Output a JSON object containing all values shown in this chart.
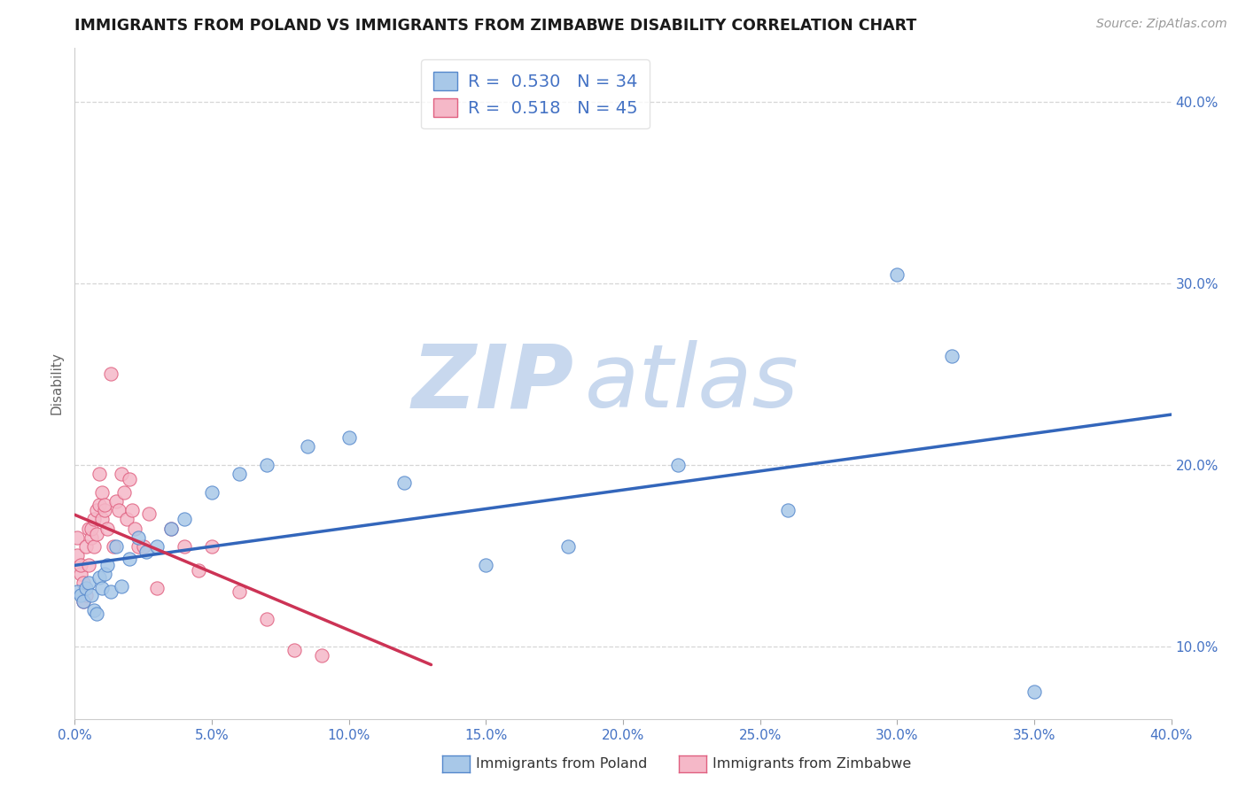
{
  "title": "IMMIGRANTS FROM POLAND VS IMMIGRANTS FROM ZIMBABWE DISABILITY CORRELATION CHART",
  "source": "Source: ZipAtlas.com",
  "ylabel": "Disability",
  "poland_fill_color": "#a8c8e8",
  "zimbabwe_fill_color": "#f5b8c8",
  "poland_edge_color": "#5588cc",
  "zimbabwe_edge_color": "#e06080",
  "poland_line_color": "#3366bb",
  "zimbabwe_line_color": "#cc3355",
  "poland_R": 0.53,
  "poland_N": 34,
  "zimbabwe_R": 0.518,
  "zimbabwe_N": 45,
  "xlim": [
    0.0,
    0.4
  ],
  "ylim": [
    0.06,
    0.43
  ],
  "xtick_vals": [
    0.0,
    0.05,
    0.1,
    0.15,
    0.2,
    0.25,
    0.3,
    0.35,
    0.4
  ],
  "ytick_vals": [
    0.1,
    0.2,
    0.3,
    0.4
  ],
  "poland_x": [
    0.001,
    0.002,
    0.003,
    0.004,
    0.005,
    0.006,
    0.007,
    0.008,
    0.009,
    0.01,
    0.011,
    0.012,
    0.013,
    0.015,
    0.017,
    0.02,
    0.023,
    0.026,
    0.03,
    0.035,
    0.04,
    0.05,
    0.06,
    0.07,
    0.085,
    0.1,
    0.12,
    0.15,
    0.18,
    0.22,
    0.26,
    0.3,
    0.32,
    0.35
  ],
  "poland_y": [
    0.13,
    0.128,
    0.125,
    0.132,
    0.135,
    0.128,
    0.12,
    0.118,
    0.138,
    0.132,
    0.14,
    0.145,
    0.13,
    0.155,
    0.133,
    0.148,
    0.16,
    0.152,
    0.155,
    0.165,
    0.17,
    0.185,
    0.195,
    0.2,
    0.21,
    0.215,
    0.19,
    0.145,
    0.155,
    0.2,
    0.175,
    0.305,
    0.26,
    0.075
  ],
  "zimbabwe_x": [
    0.001,
    0.001,
    0.002,
    0.002,
    0.003,
    0.003,
    0.004,
    0.004,
    0.005,
    0.005,
    0.006,
    0.006,
    0.007,
    0.007,
    0.008,
    0.008,
    0.009,
    0.009,
    0.01,
    0.01,
    0.011,
    0.011,
    0.012,
    0.013,
    0.014,
    0.015,
    0.016,
    0.017,
    0.018,
    0.019,
    0.02,
    0.021,
    0.022,
    0.023,
    0.025,
    0.027,
    0.03,
    0.035,
    0.04,
    0.045,
    0.05,
    0.06,
    0.07,
    0.08,
    0.09
  ],
  "zimbabwe_y": [
    0.15,
    0.16,
    0.14,
    0.145,
    0.135,
    0.125,
    0.128,
    0.155,
    0.145,
    0.165,
    0.16,
    0.165,
    0.155,
    0.17,
    0.162,
    0.175,
    0.178,
    0.195,
    0.185,
    0.17,
    0.175,
    0.178,
    0.165,
    0.25,
    0.155,
    0.18,
    0.175,
    0.195,
    0.185,
    0.17,
    0.192,
    0.175,
    0.165,
    0.155,
    0.155,
    0.173,
    0.132,
    0.165,
    0.155,
    0.142,
    0.155,
    0.13,
    0.115,
    0.098,
    0.095
  ],
  "background_color": "#ffffff",
  "grid_color": "#cccccc",
  "title_color": "#1a1a1a",
  "axis_label_color": "#666666",
  "tick_label_color": "#4472c4",
  "watermark_zip_color": "#c8d8ee",
  "watermark_atlas_color": "#c8d8ee",
  "legend_R_label_color": "#000000",
  "legend_N_label_color": "#000000",
  "legend_value_color": "#4472c4"
}
